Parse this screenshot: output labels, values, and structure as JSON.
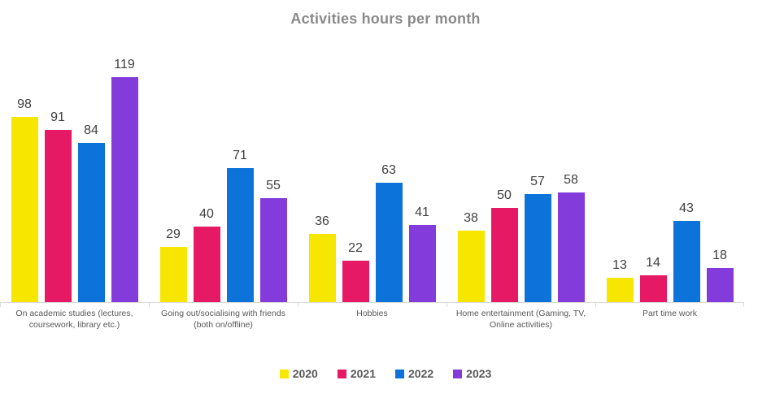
{
  "chart_data": {
    "type": "bar",
    "title": "Activities hours per month",
    "categories": [
      "On academic studies (lectures, coursework, library etc.)",
      "Going out/socialising with friends (both on/offline)",
      "Hobbies",
      "Home entertainment (Gaming, TV, Online activities)",
      "Part time work"
    ],
    "series": [
      {
        "name": "2020",
        "color": "#f7e600",
        "values": [
          98,
          29,
          36,
          38,
          13
        ]
      },
      {
        "name": "2021",
        "color": "#e61a64",
        "values": [
          91,
          40,
          22,
          50,
          14
        ]
      },
      {
        "name": "2022",
        "color": "#0c73db",
        "values": [
          84,
          71,
          63,
          57,
          43
        ]
      },
      {
        "name": "2023",
        "color": "#833bdb",
        "values": [
          119,
          55,
          41,
          58,
          18
        ]
      }
    ],
    "data_labels": true,
    "gridlines": false,
    "legend_position": "bottom",
    "xlabel": "",
    "ylabel": "",
    "ylim": [
      0,
      125
    ]
  },
  "colors": {
    "background": "#ffffff",
    "title_text": "#8a8a8a",
    "data_label_text": "#404040",
    "category_label_text": "#595959",
    "legend_text": "#595959",
    "axis_line": "#d9d9d9"
  }
}
